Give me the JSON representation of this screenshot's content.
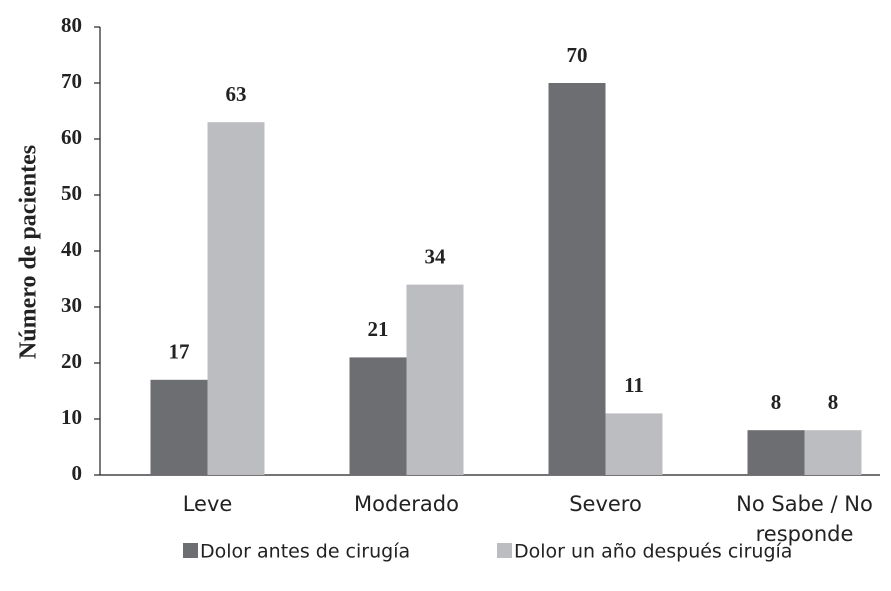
{
  "chart_data": {
    "type": "bar",
    "y_label": "Número de pacientes",
    "categories": [
      "Leve",
      "Moderado",
      "Severo",
      "No Sabe / No responde"
    ],
    "series": [
      {
        "name": "Dolor antes de cirugía",
        "color": "#6d6e71",
        "values": [
          17,
          21,
          70,
          8
        ]
      },
      {
        "name": "Dolor un año después cirugía",
        "color": "#bcbdc0",
        "values": [
          63,
          34,
          11,
          8
        ]
      }
    ],
    "ylim": [
      0,
      80
    ],
    "yticks": [
      0,
      10,
      20,
      30,
      40,
      50,
      60,
      70,
      80
    ],
    "legend": "bottom"
  }
}
